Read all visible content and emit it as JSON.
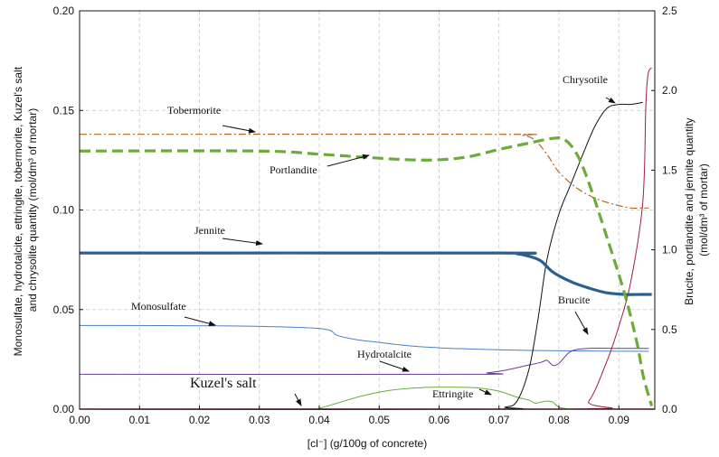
{
  "chart_data": {
    "type": "line",
    "xlabel": "[cl⁻] (g/100g of concrete)",
    "ylabel_left": "Monosulfate, hydrotalcite, ettringite, tobermorite, Kuzel's salt and chrysolite quantity (mol/dm³ of mortar)",
    "ylabel_left_lines": [
      "Monosulfate, hydrotalcite, ettringite, tobermorite, Kuzel's salt",
      "and chrysolite quantity (mol/dm³ of mortar)"
    ],
    "ylabel_right": "Brucite, portlandite and jennite quantity (mol/dm³ of mortar)",
    "ylabel_right_lines": [
      "Brucite, portlandite and jennite quantity",
      "(mol/dm³ of mortar)"
    ],
    "xlim": [
      0,
      0.096
    ],
    "ylim_left": [
      0,
      0.2
    ],
    "ylim_right": [
      0,
      2.5
    ],
    "x_ticks": [
      "0.00",
      "0.01",
      "0.02",
      "0.03",
      "0.04",
      "0.05",
      "0.06",
      "0.07",
      "0.08",
      "0.09"
    ],
    "y_left_ticks": [
      "0.00",
      "0.05",
      "0.10",
      "0.15",
      "0.20"
    ],
    "y_right_ticks": [
      "0.0",
      "0.5",
      "1.0",
      "1.5",
      "2.0",
      "2.5"
    ],
    "grid": true,
    "series": [
      {
        "name": "Tobermorite",
        "axis": "left",
        "color": "#b5651d",
        "style": "dashdot",
        "width": 1.2,
        "x": [
          0,
          0.07,
          0.074,
          0.076,
          0.078,
          0.08,
          0.083,
          0.086,
          0.089,
          0.092,
          0.094,
          0.095
        ],
        "y": [
          0.138,
          0.138,
          0.1375,
          0.135,
          0.128,
          0.119,
          0.111,
          0.106,
          0.103,
          0.101,
          0.101,
          0.101
        ]
      },
      {
        "name": "Portlandite",
        "axis": "right",
        "color": "#6aab3a",
        "style": "dashed",
        "width": 3.2,
        "x": [
          0,
          0.03,
          0.04,
          0.05,
          0.055,
          0.06,
          0.065,
          0.07,
          0.075,
          0.079,
          0.081,
          0.083,
          0.085,
          0.088,
          0.091,
          0.093,
          0.094,
          0.095,
          0.0955
        ],
        "y": [
          1.62,
          1.62,
          1.6,
          1.575,
          1.565,
          1.565,
          1.585,
          1.63,
          1.67,
          1.7,
          1.69,
          1.6,
          1.42,
          1.08,
          0.72,
          0.42,
          0.22,
          0.08,
          0.02
        ]
      },
      {
        "name": "Jennite",
        "axis": "right",
        "color": "#2b5f91",
        "style": "solid",
        "width": 3.2,
        "x": [
          0,
          0.07,
          0.073,
          0.075,
          0.077,
          0.079,
          0.082,
          0.085,
          0.088,
          0.091,
          0.094,
          0.0955
        ],
        "y": [
          0.98,
          0.98,
          0.975,
          0.96,
          0.93,
          0.86,
          0.8,
          0.76,
          0.73,
          0.72,
          0.72,
          0.72
        ]
      },
      {
        "name": "Monosulfate",
        "axis": "left",
        "color": "#4a7fc6",
        "style": "solid",
        "width": 1,
        "x": [
          0,
          0.025,
          0.04,
          0.043,
          0.046,
          0.05,
          0.055,
          0.06,
          0.065,
          0.07,
          0.075,
          0.08,
          0.085,
          0.09,
          0.095
        ],
        "y": [
          0.042,
          0.0418,
          0.0405,
          0.037,
          0.035,
          0.0335,
          0.0318,
          0.0308,
          0.0302,
          0.0298,
          0.0295,
          0.0293,
          0.0292,
          0.0291,
          0.029
        ]
      },
      {
        "name": "Hydrotalcite",
        "axis": "left",
        "color": "#6a3a9a",
        "style": "solid",
        "width": 1,
        "x": [
          0,
          0.065,
          0.068,
          0.071,
          0.074,
          0.077,
          0.078,
          0.079,
          0.08,
          0.082,
          0.085,
          0.09,
          0.095
        ],
        "y": [
          0.0175,
          0.0175,
          0.0182,
          0.0195,
          0.0215,
          0.0235,
          0.0245,
          0.022,
          0.023,
          0.029,
          0.0305,
          0.0305,
          0.0305
        ]
      },
      {
        "name": "Ettringite",
        "axis": "left",
        "color": "#6aab3a",
        "style": "solid",
        "width": 1,
        "x": [
          0,
          0.038,
          0.04,
          0.043,
          0.047,
          0.052,
          0.057,
          0.063,
          0.067,
          0.07,
          0.073,
          0.075,
          0.076,
          0.077,
          0.078,
          0.079,
          0.08,
          0.082
        ],
        "y": [
          0,
          0,
          0.0005,
          0.003,
          0.0065,
          0.0095,
          0.0108,
          0.011,
          0.0105,
          0.009,
          0.006,
          0.0045,
          0.003,
          0.0035,
          0.004,
          0.0035,
          0.001,
          0
        ]
      },
      {
        "name": "Chrysotile",
        "axis": "left",
        "color": "#111111",
        "style": "solid",
        "width": 1,
        "x": [
          0,
          0.068,
          0.071,
          0.073,
          0.075,
          0.0765,
          0.078,
          0.08,
          0.082,
          0.084,
          0.086,
          0.088,
          0.09,
          0.092,
          0.094
        ],
        "y": [
          0,
          0,
          0.001,
          0.004,
          0.02,
          0.045,
          0.075,
          0.098,
          0.113,
          0.128,
          0.142,
          0.151,
          0.153,
          0.153,
          0.154
        ]
      },
      {
        "name": "Brucite",
        "axis": "right",
        "color": "#a31e3c",
        "style": "solid",
        "width": 1,
        "x": [
          0,
          0.082,
          0.085,
          0.088,
          0.09,
          0.092,
          0.094,
          0.0945,
          0.0948,
          0.0951,
          0.0955
        ],
        "y": [
          0,
          0,
          0.05,
          0.3,
          0.52,
          0.8,
          1.3,
          1.9,
          2.08,
          2.13,
          2.14
        ]
      },
      {
        "name": "Kuzel's salt",
        "axis": "left",
        "color": "#a31e3c",
        "style": "solid",
        "width": 1.5,
        "x": [
          0,
          0.096
        ],
        "y": [
          0,
          0
        ]
      }
    ],
    "annotations": [
      {
        "label": "Tobermorite",
        "series": "Tobermorite"
      },
      {
        "label": "Portlandite",
        "series": "Portlandite"
      },
      {
        "label": "Jennite",
        "series": "Jennite"
      },
      {
        "label": "Monosulfate",
        "series": "Monosulfate"
      },
      {
        "label": "Hydrotalcite",
        "series": "Hydrotalcite"
      },
      {
        "label": "Kuzel's salt",
        "series": "Kuzel's salt"
      },
      {
        "label": "Ettringite",
        "series": "Ettringite"
      },
      {
        "label": "Chrysotile",
        "series": "Chrysotile"
      },
      {
        "label": "Brucite",
        "series": "Brucite"
      }
    ]
  }
}
